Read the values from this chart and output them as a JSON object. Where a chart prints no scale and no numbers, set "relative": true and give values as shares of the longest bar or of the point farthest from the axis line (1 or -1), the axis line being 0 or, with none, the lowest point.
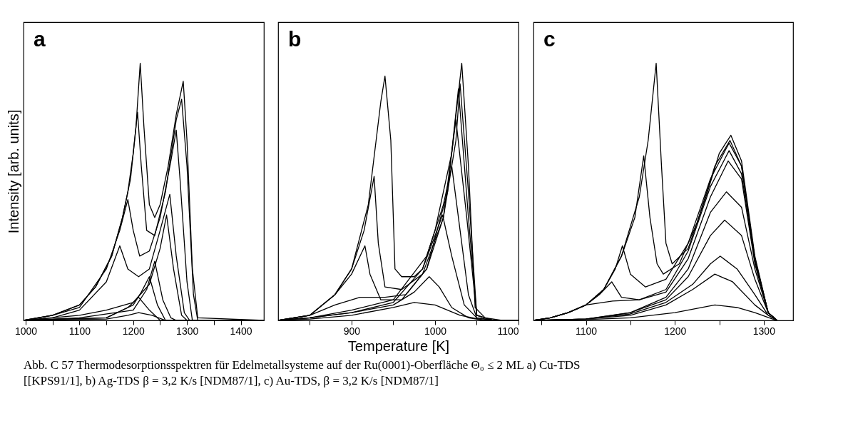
{
  "chart_data": [
    {
      "type": "line",
      "title": "a",
      "ylabel": "Intensity [arb. units]",
      "relative": true,
      "xlim": [
        996,
        1443
      ],
      "xticks": [
        1000,
        {
          "value": 1050,
          "label": null
        },
        1100,
        {
          "value": 1150,
          "label": null
        },
        1200,
        {
          "value": 1250,
          "label": null
        },
        1300,
        {
          "value": 1350,
          "label": null
        },
        1400
      ],
      "line_style": "solid",
      "series": [
        {
          "color": "#000000",
          "x": [
            996,
            1050,
            1100,
            1130,
            1160,
            1180,
            1195,
            1205,
            1213,
            1220,
            1230,
            1240,
            1250,
            1265,
            1280,
            1293,
            1300,
            1310,
            1320,
            1443
          ],
          "values": [
            0,
            0.02,
            0.06,
            0.13,
            0.25,
            0.4,
            0.55,
            0.75,
            1.0,
            0.75,
            0.45,
            0.4,
            0.45,
            0.6,
            0.8,
            0.93,
            0.7,
            0.2,
            0.01,
            0
          ]
        },
        {
          "color": "#000000",
          "x": [
            996,
            1050,
            1100,
            1130,
            1160,
            1180,
            1190,
            1200,
            1208,
            1215,
            1225,
            1240,
            1260,
            1280,
            1290,
            1300,
            1312,
            1320,
            1443
          ],
          "values": [
            0,
            0.02,
            0.06,
            0.13,
            0.25,
            0.4,
            0.5,
            0.65,
            0.81,
            0.6,
            0.35,
            0.33,
            0.5,
            0.78,
            0.86,
            0.6,
            0.1,
            0,
            0
          ]
        },
        {
          "color": "#000000",
          "x": [
            996,
            1050,
            1100,
            1150,
            1175,
            1190,
            1200,
            1212,
            1230,
            1250,
            1270,
            1280,
            1287,
            1300,
            1310,
            1443
          ],
          "values": [
            0,
            0.02,
            0.05,
            0.2,
            0.35,
            0.47,
            0.35,
            0.25,
            0.27,
            0.4,
            0.62,
            0.74,
            0.55,
            0.15,
            0,
            0
          ]
        },
        {
          "color": "#000000",
          "x": [
            996,
            1050,
            1100,
            1150,
            1175,
            1190,
            1210,
            1230,
            1250,
            1268,
            1280,
            1295,
            1305,
            1443
          ],
          "values": [
            0,
            0.01,
            0.04,
            0.15,
            0.29,
            0.2,
            0.17,
            0.2,
            0.35,
            0.49,
            0.25,
            0.03,
            0,
            0
          ]
        },
        {
          "color": "#000000",
          "x": [
            996,
            1100,
            1150,
            1200,
            1230,
            1250,
            1262,
            1275,
            1290,
            1300,
            1443
          ],
          "values": [
            0,
            0.02,
            0.04,
            0.07,
            0.14,
            0.28,
            0.41,
            0.2,
            0.02,
            0,
            0
          ]
        },
        {
          "color": "#000000",
          "x": [
            996,
            1100,
            1200,
            1225,
            1240,
            1255,
            1270,
            1280,
            1443
          ],
          "values": [
            0,
            0.01,
            0.04,
            0.12,
            0.23,
            0.08,
            0.01,
            0,
            0
          ]
        },
        {
          "color": "#000000",
          "x": [
            996,
            1150,
            1200,
            1215,
            1230,
            1245,
            1260,
            1443
          ],
          "values": [
            0,
            0.01,
            0.06,
            0.11,
            0.17,
            0.06,
            0,
            0
          ]
        },
        {
          "color": "#000000",
          "x": [
            996,
            1150,
            1190,
            1210,
            1230,
            1250,
            1443
          ],
          "values": [
            0,
            0.01,
            0.05,
            0.09,
            0.04,
            0,
            0
          ]
        },
        {
          "color": "#000000",
          "x": [
            996,
            1150,
            1190,
            1210,
            1235,
            1260,
            1443
          ],
          "values": [
            0,
            0.005,
            0.02,
            0.03,
            0.02,
            0,
            0
          ]
        }
      ]
    },
    {
      "type": "line",
      "title": "b",
      "xlabel": "Temperature [K]",
      "relative": true,
      "xlim": [
        812,
        1100
      ],
      "xticks": [
        {
          "value": 850,
          "label": null
        },
        900,
        {
          "value": 950,
          "label": null
        },
        1000,
        {
          "value": 1050,
          "label": null
        },
        1100
      ],
      "line_style": "solid",
      "series": [
        {
          "color": "#000000",
          "x": [
            812,
            850,
            880,
            900,
            920,
            935,
            940,
            947,
            952,
            960,
            975,
            985,
            1000,
            1020,
            1032,
            1040,
            1048,
            1060,
            1080,
            1100
          ],
          "values": [
            0,
            0.02,
            0.1,
            0.2,
            0.45,
            0.85,
            0.95,
            0.7,
            0.2,
            0.17,
            0.17,
            0.2,
            0.35,
            0.65,
            1.0,
            0.6,
            0.05,
            0.01,
            0,
            0
          ]
        },
        {
          "color": "#000000",
          "x": [
            812,
            850,
            880,
            900,
            915,
            927,
            932,
            940,
            960,
            985,
            1010,
            1025,
            1030,
            1040,
            1050,
            1070,
            1100
          ],
          "values": [
            0,
            0.02,
            0.1,
            0.2,
            0.35,
            0.56,
            0.3,
            0.13,
            0.12,
            0.18,
            0.4,
            0.7,
            0.92,
            0.5,
            0.02,
            0,
            0
          ]
        },
        {
          "color": "#000000",
          "x": [
            812,
            850,
            880,
            900,
            916,
            922,
            935,
            960,
            990,
            1015,
            1028,
            1040,
            1050,
            1070,
            1100
          ],
          "values": [
            0,
            0.02,
            0.1,
            0.18,
            0.29,
            0.18,
            0.08,
            0.08,
            0.2,
            0.5,
            0.9,
            0.4,
            0.02,
            0,
            0
          ]
        },
        {
          "color": "#000000",
          "x": [
            812,
            850,
            880,
            910,
            940,
            965,
            990,
            1010,
            1025,
            1038,
            1050,
            1070,
            1100
          ],
          "values": [
            0,
            0.02,
            0.06,
            0.09,
            0.09,
            0.1,
            0.2,
            0.4,
            0.78,
            0.4,
            0.02,
            0,
            0
          ]
        },
        {
          "color": "#000000",
          "x": [
            812,
            850,
            900,
            950,
            990,
            1010,
            1020,
            1030,
            1040,
            1050,
            1070,
            1100
          ],
          "values": [
            0,
            0.01,
            0.04,
            0.08,
            0.25,
            0.45,
            0.6,
            0.35,
            0.1,
            0.01,
            0,
            0
          ]
        },
        {
          "color": "#000000",
          "x": [
            812,
            850,
            900,
            950,
            985,
            1000,
            1009,
            1020,
            1035,
            1050,
            1070,
            1100
          ],
          "values": [
            0,
            0.01,
            0.03,
            0.07,
            0.2,
            0.33,
            0.41,
            0.25,
            0.06,
            0.01,
            0,
            0
          ]
        },
        {
          "color": "#000000",
          "x": [
            812,
            850,
            900,
            950,
            975,
            993,
            1005,
            1020,
            1040,
            1060,
            1100
          ],
          "values": [
            0,
            0.01,
            0.03,
            0.06,
            0.11,
            0.17,
            0.13,
            0.05,
            0.01,
            0,
            0
          ]
        },
        {
          "color": "#000000",
          "x": [
            812,
            850,
            900,
            950,
            975,
            1000,
            1030,
            1060,
            1100
          ],
          "values": [
            0,
            0.005,
            0.02,
            0.05,
            0.07,
            0.06,
            0.02,
            0,
            0
          ]
        }
      ]
    },
    {
      "type": "line",
      "title": "c",
      "relative": true,
      "xlim": [
        1041,
        1333
      ],
      "xticks": [
        {
          "value": 1050,
          "label": null
        },
        1100,
        {
          "value": 1150,
          "label": null
        },
        1200,
        {
          "value": 1250,
          "label": null
        },
        1300
      ],
      "line_style": "solid",
      "series": [
        {
          "color": "#000000",
          "x": [
            1041,
            1060,
            1080,
            1100,
            1120,
            1140,
            1160,
            1170,
            1179,
            1185,
            1190,
            1197,
            1215,
            1235,
            1250,
            1263,
            1275,
            1290,
            1305,
            1315
          ],
          "values": [
            0,
            0.01,
            0.03,
            0.06,
            0.12,
            0.25,
            0.48,
            0.7,
            1.0,
            0.6,
            0.3,
            0.22,
            0.28,
            0.48,
            0.65,
            0.72,
            0.62,
            0.25,
            0.03,
            0
          ]
        },
        {
          "color": "#000000",
          "x": [
            1041,
            1060,
            1080,
            1100,
            1120,
            1140,
            1155,
            1165,
            1172,
            1180,
            1187,
            1205,
            1225,
            1245,
            1262,
            1275,
            1290,
            1305,
            1315
          ],
          "values": [
            0,
            0.01,
            0.03,
            0.06,
            0.12,
            0.25,
            0.4,
            0.64,
            0.4,
            0.22,
            0.18,
            0.22,
            0.38,
            0.6,
            0.7,
            0.6,
            0.24,
            0.03,
            0
          ]
        },
        {
          "color": "#000000",
          "x": [
            1041,
            1060,
            1080,
            1100,
            1120,
            1133,
            1141,
            1150,
            1167,
            1190,
            1215,
            1240,
            1261,
            1275,
            1290,
            1305,
            1315
          ],
          "values": [
            0,
            0.01,
            0.03,
            0.06,
            0.12,
            0.2,
            0.29,
            0.18,
            0.13,
            0.16,
            0.3,
            0.55,
            0.69,
            0.6,
            0.24,
            0.03,
            0
          ]
        },
        {
          "color": "#000000",
          "x": [
            1041,
            1060,
            1080,
            1100,
            1115,
            1129,
            1140,
            1160,
            1190,
            1215,
            1240,
            1261,
            1275,
            1290,
            1305,
            1315
          ],
          "values": [
            0,
            0.01,
            0.03,
            0.06,
            0.1,
            0.15,
            0.09,
            0.08,
            0.12,
            0.27,
            0.52,
            0.66,
            0.57,
            0.23,
            0.03,
            0
          ]
        },
        {
          "color": "#000000",
          "x": [
            1041,
            1060,
            1080,
            1100,
            1130,
            1160,
            1190,
            1215,
            1240,
            1260,
            1275,
            1290,
            1305,
            1315
          ],
          "values": [
            0,
            0.01,
            0.03,
            0.06,
            0.075,
            0.08,
            0.11,
            0.24,
            0.48,
            0.62,
            0.55,
            0.22,
            0.03,
            0
          ]
        },
        {
          "color": "#000000",
          "x": [
            1041,
            1100,
            1150,
            1190,
            1215,
            1240,
            1258,
            1275,
            1290,
            1305,
            1315
          ],
          "values": [
            0,
            0.005,
            0.03,
            0.09,
            0.2,
            0.42,
            0.5,
            0.44,
            0.2,
            0.03,
            0
          ]
        },
        {
          "color": "#000000",
          "x": [
            1041,
            1100,
            1150,
            1190,
            1215,
            1240,
            1256,
            1275,
            1290,
            1305,
            1315
          ],
          "values": [
            0,
            0.005,
            0.03,
            0.08,
            0.17,
            0.33,
            0.39,
            0.33,
            0.16,
            0.03,
            0
          ]
        },
        {
          "color": "#000000",
          "x": [
            1041,
            1100,
            1150,
            1190,
            1220,
            1240,
            1251,
            1270,
            1290,
            1305,
            1315
          ],
          "values": [
            0,
            0.005,
            0.025,
            0.07,
            0.14,
            0.22,
            0.25,
            0.2,
            0.1,
            0.02,
            0
          ]
        },
        {
          "color": "#000000",
          "x": [
            1041,
            1100,
            1150,
            1190,
            1220,
            1245,
            1265,
            1290,
            1305,
            1315
          ],
          "values": [
            0,
            0.005,
            0.02,
            0.06,
            0.12,
            0.18,
            0.15,
            0.06,
            0.02,
            0
          ]
        },
        {
          "color": "#000000",
          "x": [
            1041,
            1100,
            1150,
            1200,
            1245,
            1270,
            1290,
            1310,
            1315
          ],
          "values": [
            0,
            0.003,
            0.01,
            0.03,
            0.06,
            0.05,
            0.03,
            0.005,
            0
          ]
        }
      ],
      "annotations": [
        "Abb. C 57 Thermodesorptionsspektren für Edelmetallsysteme auf der Ru(0001)-Oberfläche Θ₀ ≤ 2 ML a) Cu-TDS [[KPS91/1], b) Ag-TDS β = 3,2 K/s [NDM87/1], c) Au-TDS, β = 3,2 K/s [NDM87/1]"
      ]
    }
  ]
}
